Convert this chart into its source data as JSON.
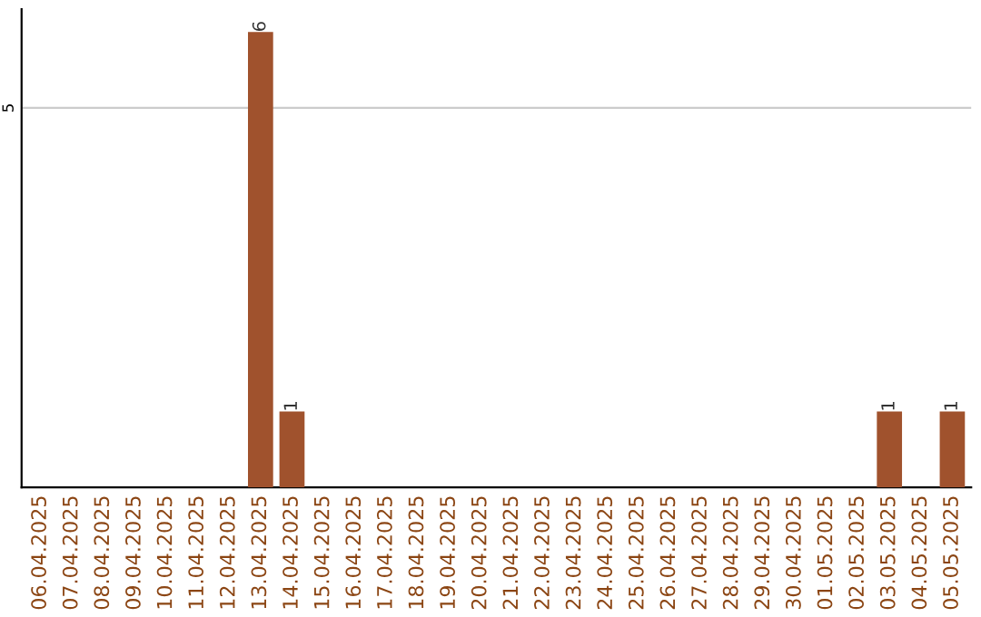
{
  "chart_data": {
    "type": "bar",
    "categories": [
      "06.04.2025",
      "07.04.2025",
      "08.04.2025",
      "09.04.2025",
      "10.04.2025",
      "11.04.2025",
      "12.04.2025",
      "13.04.2025",
      "14.04.2025",
      "15.04.2025",
      "16.04.2025",
      "17.04.2025",
      "18.04.2025",
      "19.04.2025",
      "20.04.2025",
      "21.04.2025",
      "22.04.2025",
      "23.04.2025",
      "24.04.2025",
      "25.04.2025",
      "26.04.2025",
      "27.04.2025",
      "28.04.2025",
      "29.04.2025",
      "30.04.2025",
      "01.05.2025",
      "02.05.2025",
      "03.05.2025",
      "04.05.2025",
      "05.05.2025"
    ],
    "values": [
      0,
      0,
      0,
      0,
      0,
      0,
      0,
      6,
      1,
      0,
      0,
      0,
      0,
      0,
      0,
      0,
      0,
      0,
      0,
      0,
      0,
      0,
      0,
      0,
      0,
      0,
      0,
      1,
      0,
      1
    ],
    "color": "#a0522d",
    "value_labels": [
      null,
      null,
      null,
      null,
      null,
      null,
      null,
      "6",
      "1",
      null,
      null,
      null,
      null,
      null,
      null,
      null,
      null,
      null,
      null,
      null,
      null,
      null,
      null,
      null,
      null,
      null,
      null,
      "1",
      null,
      "1"
    ],
    "ylim": [
      0,
      6.3
    ],
    "yticks": [
      5
    ],
    "grid": "y"
  }
}
